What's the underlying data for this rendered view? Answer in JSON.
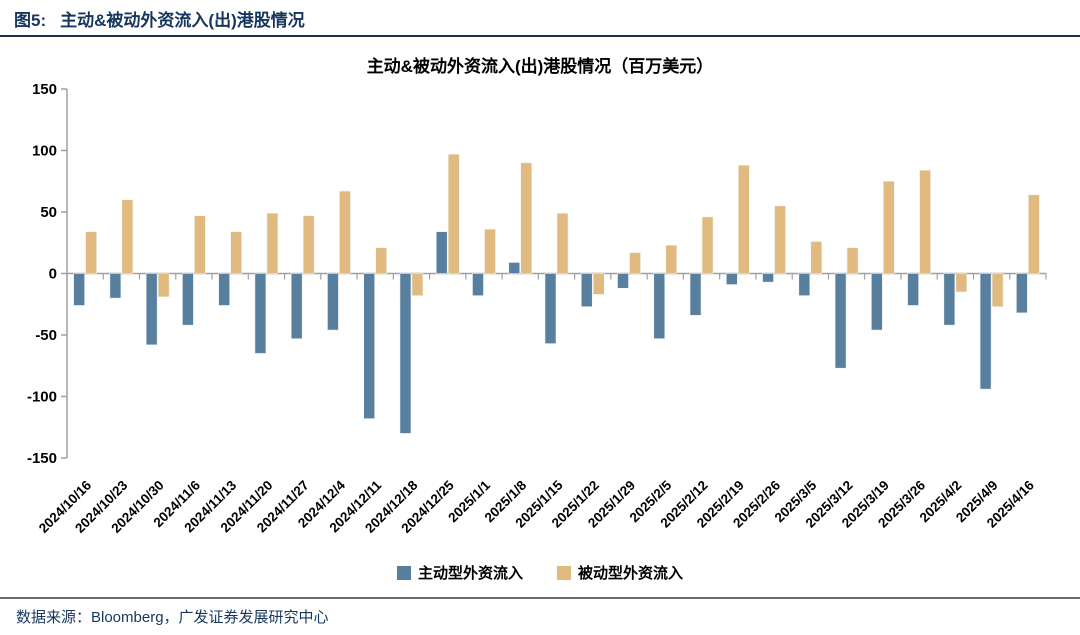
{
  "header": {
    "figure_label": "图5:",
    "title": "主动&被动外资流入(出)港股情况"
  },
  "chart_data": {
    "type": "bar",
    "title": "主动&被动外资流入(出)港股情况（百万美元）",
    "unit": "百万美元",
    "categories": [
      "2024/10/16",
      "2024/10/23",
      "2024/10/30",
      "2024/11/6",
      "2024/11/13",
      "2024/11/20",
      "2024/11/27",
      "2024/12/4",
      "2024/12/11",
      "2024/12/18",
      "2024/12/25",
      "2025/1/1",
      "2025/1/8",
      "2025/1/15",
      "2025/1/22",
      "2025/1/29",
      "2025/2/5",
      "2025/2/12",
      "2025/2/19",
      "2025/2/26",
      "2025/3/5",
      "2025/3/12",
      "2025/3/19",
      "2025/3/26",
      "2025/4/2",
      "2025/4/9",
      "2025/4/16"
    ],
    "series": [
      {
        "name": "主动型外资流入",
        "color": "#587f9e",
        "values": [
          -26,
          -20,
          -58,
          -42,
          -26,
          -65,
          -53,
          -46,
          -118,
          -130,
          34,
          -18,
          9,
          -57,
          -27,
          -12,
          -53,
          -34,
          -9,
          -7,
          -18,
          -77,
          -46,
          -26,
          -42,
          -94,
          -32
        ]
      },
      {
        "name": "被动型外资流入",
        "color": "#e0ba7e",
        "values": [
          34,
          60,
          -19,
          47,
          34,
          49,
          47,
          67,
          21,
          -18,
          97,
          36,
          90,
          49,
          -17,
          17,
          23,
          46,
          88,
          55,
          26,
          21,
          75,
          84,
          -15,
          -27,
          64
        ]
      }
    ],
    "ylim": [
      -150,
      150
    ],
    "ytick_step": 50,
    "yticks": [
      "150",
      "100",
      "50",
      "0",
      "-50",
      "-100",
      "-150"
    ],
    "grid": false,
    "legend_position": "bottom",
    "axis_color": "#a0a0a0",
    "text_color": "#000000"
  },
  "footer": {
    "source": "数据来源：Bloomberg，广发证券发展研究中心"
  }
}
